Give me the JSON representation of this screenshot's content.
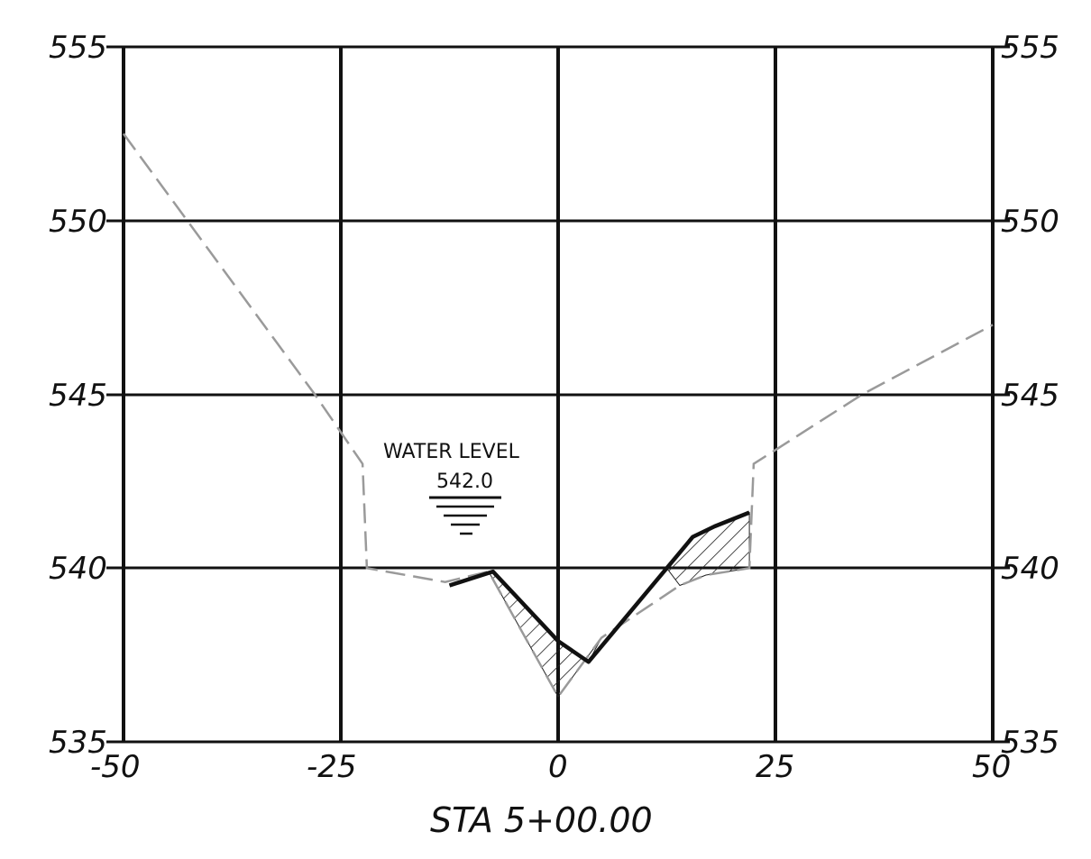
{
  "station_label": "STA 5+00.00",
  "water_level": {
    "label": "WATER LEVEL",
    "elevation": "542.0"
  },
  "axes": {
    "x_ticks": [
      "-50",
      "-25",
      "0",
      "25",
      "50"
    ],
    "y_ticks": [
      "555",
      "550",
      "545",
      "540",
      "535"
    ],
    "x_range": [
      -50,
      50
    ],
    "y_range": [
      535,
      555
    ],
    "grid": true
  },
  "colors": {
    "grid": "#111111",
    "existing_ground": "#9a9a9a",
    "proposed_channel": "#111111",
    "hatch": "#222222"
  },
  "profiles": {
    "existing_ground": [
      [
        -50,
        552.5
      ],
      [
        -28,
        545
      ],
      [
        -22.5,
        543
      ],
      [
        -22,
        540
      ],
      [
        -13,
        539.6
      ],
      [
        -8,
        539.9
      ],
      [
        0,
        536.3
      ],
      [
        5,
        538.0
      ],
      [
        14,
        539.5
      ],
      [
        17,
        539.8
      ],
      [
        22,
        540
      ],
      [
        22.5,
        543
      ],
      [
        35,
        545
      ],
      [
        50,
        547
      ]
    ],
    "proposed_channel": [
      [
        -12.5,
        539.5
      ],
      [
        -7.5,
        539.9
      ],
      [
        0,
        537.9
      ],
      [
        3.5,
        537.3
      ],
      [
        12.5,
        540.0
      ],
      [
        15.5,
        540.9
      ],
      [
        18,
        541.2
      ],
      [
        22,
        541.6
      ]
    ],
    "cut_area_1": [
      [
        -12.5,
        539.5
      ],
      [
        -7.5,
        539.9
      ],
      [
        0,
        537.9
      ],
      [
        3.5,
        537.3
      ],
      [
        5,
        538.0
      ],
      [
        0,
        536.3
      ],
      [
        -8,
        539.9
      ]
    ],
    "cut_area_2": [
      [
        12.5,
        540.0
      ],
      [
        15.5,
        540.9
      ],
      [
        18,
        541.2
      ],
      [
        22,
        541.6
      ],
      [
        22,
        540
      ],
      [
        17,
        539.8
      ],
      [
        14,
        539.5
      ]
    ]
  }
}
